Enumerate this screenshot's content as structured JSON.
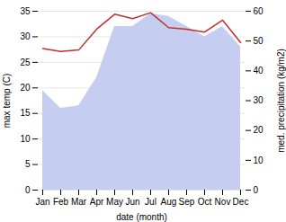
{
  "chart_data": {
    "type": "area",
    "categories": [
      "Jan",
      "Feb",
      "Mar",
      "Apr",
      "May",
      "Jun",
      "Jul",
      "Aug",
      "Sep",
      "Oct",
      "Nov",
      "Dec"
    ],
    "series": [
      {
        "type": "area",
        "color": "#c5cef0",
        "values": [
          19.5,
          16.0,
          16.5,
          22.0,
          32.0,
          32.0,
          34.5,
          34.0,
          32.0,
          30.0,
          32.0,
          28.0
        ]
      },
      {
        "type": "line",
        "axis": "y2",
        "color": "#c03030",
        "values": [
          47.5,
          46.5,
          47.0,
          54.0,
          59.0,
          57.5,
          59.5,
          54.5,
          54.0,
          53.0,
          57.0,
          49.5
        ]
      }
    ],
    "xlabel": "date (month)",
    "ylabel": "max temp (C)",
    "y2label": "med. precipitation (kg/m2)",
    "ylim": [
      0,
      35
    ],
    "yticks": [
      0,
      5,
      10,
      15,
      20,
      25,
      30,
      35
    ],
    "y2lim": [
      0,
      60
    ],
    "y2ticks": [
      0,
      10,
      20,
      30,
      40,
      50,
      60
    ],
    "grid": true
  }
}
